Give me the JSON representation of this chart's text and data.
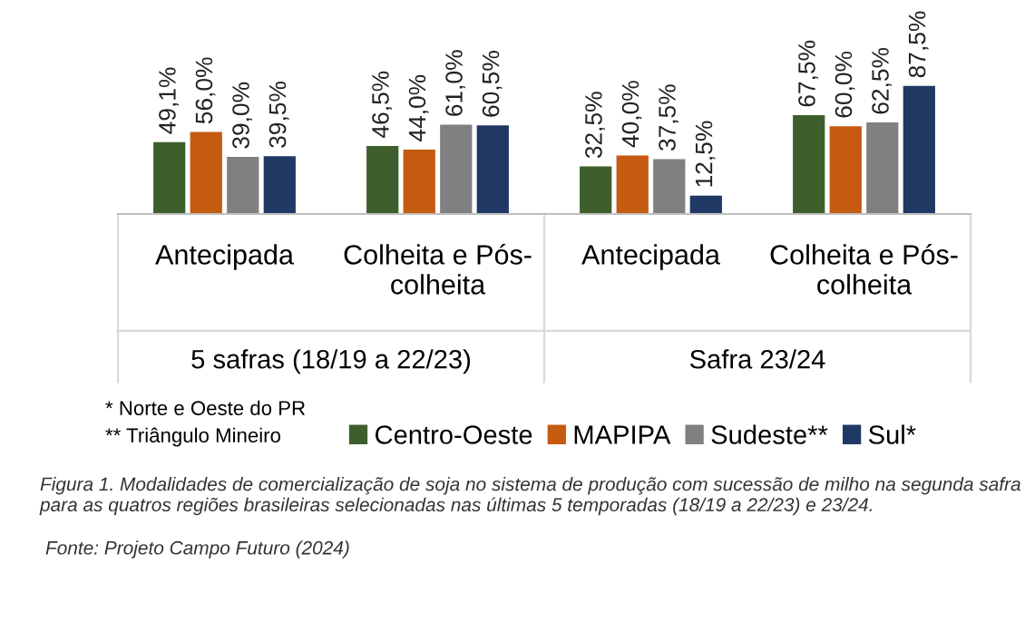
{
  "chart_data": {
    "type": "bar",
    "categories": [
      "Antecipada",
      "Colheita e Pós-\ncolheita",
      "Antecipada",
      "Colheita e Pós-\ncolheita"
    ],
    "series": [
      {
        "name": "Centro-Oeste",
        "color": "#3e5f2b",
        "values": [
          49.1,
          46.5,
          32.5,
          67.5
        ],
        "value_labels": [
          "49,1%",
          "46,5%",
          "32,5%",
          "67,5%"
        ]
      },
      {
        "name": "MAPIPA",
        "color": "#c55a11",
        "values": [
          56.0,
          44.0,
          40.0,
          60.0
        ],
        "value_labels": [
          "56,0%",
          "44,0%",
          "40,0%",
          "60,0%"
        ]
      },
      {
        "name": "Sudeste**",
        "color": "#808080",
        "values": [
          39.0,
          61.0,
          37.5,
          62.5
        ],
        "value_labels": [
          "39,0%",
          "61,0%",
          "37,5%",
          "62,5%"
        ]
      },
      {
        "name": "Sul*",
        "color": "#1f3864",
        "values": [
          39.5,
          60.5,
          12.5,
          87.5
        ],
        "value_labels": [
          "39,5%",
          "60,5%",
          "12,5%",
          "87,5%"
        ]
      }
    ],
    "legend": "bottom",
    "grid": false,
    "annotations": [
      "5 safras (18/19 a 22/23)",
      "Safra 23/24",
      "* Norte e Oeste do PR",
      "** Triângulo Mineiro",
      "Figura 1. Modalidades de comercialização de soja no sistema de produção com sucessão de milho na segunda safra para as quatros regiões brasileiras selecionadas nas últimas 5 temporadas (18/19 a 22/23) e 23/24.",
      "Fonte: Projeto Campo Futuro (2024)"
    ]
  }
}
